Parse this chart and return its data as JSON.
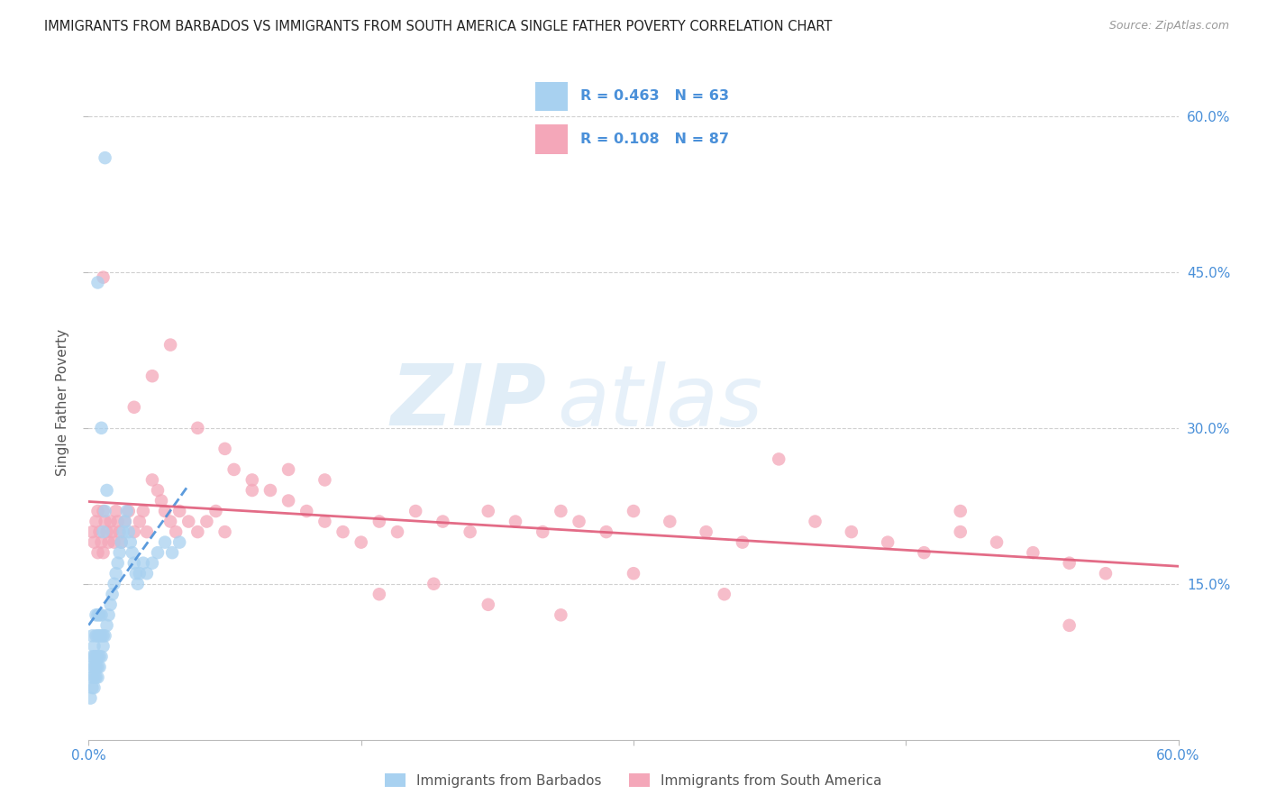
{
  "title": "IMMIGRANTS FROM BARBADOS VS IMMIGRANTS FROM SOUTH AMERICA SINGLE FATHER POVERTY CORRELATION CHART",
  "source": "Source: ZipAtlas.com",
  "ylabel": "Single Father Poverty",
  "ytick_labels": [
    "60.0%",
    "45.0%",
    "30.0%",
    "15.0%"
  ],
  "ytick_values": [
    0.6,
    0.45,
    0.3,
    0.15
  ],
  "xtick_labels": [
    "0.0%",
    "",
    "",
    "",
    "60.0%"
  ],
  "xtick_values": [
    0.0,
    0.15,
    0.3,
    0.45,
    0.6
  ],
  "xlim": [
    0.0,
    0.6
  ],
  "ylim": [
    0.0,
    0.65
  ],
  "legend1_r": "0.463",
  "legend1_n": "63",
  "legend2_r": "0.108",
  "legend2_n": "87",
  "color_blue": "#a8d1f0",
  "color_pink": "#f4a7b9",
  "color_blue_line": "#4a90d9",
  "color_pink_line": "#e05c7a",
  "color_axis_labels": "#4a90d9",
  "grid_color": "#d0d0d0",
  "barbados_x": [
    0.001,
    0.001,
    0.002,
    0.002,
    0.002,
    0.002,
    0.003,
    0.003,
    0.003,
    0.003,
    0.003,
    0.004,
    0.004,
    0.004,
    0.004,
    0.004,
    0.005,
    0.005,
    0.005,
    0.005,
    0.005,
    0.006,
    0.006,
    0.006,
    0.006,
    0.007,
    0.007,
    0.007,
    0.008,
    0.008,
    0.008,
    0.009,
    0.009,
    0.01,
    0.01,
    0.011,
    0.012,
    0.013,
    0.014,
    0.015,
    0.016,
    0.017,
    0.018,
    0.019,
    0.02,
    0.021,
    0.022,
    0.023,
    0.024,
    0.025,
    0.026,
    0.027,
    0.028,
    0.03,
    0.032,
    0.035,
    0.038,
    0.042,
    0.046,
    0.05,
    0.005,
    0.007,
    0.009
  ],
  "barbados_y": [
    0.07,
    0.04,
    0.05,
    0.06,
    0.08,
    0.1,
    0.05,
    0.06,
    0.07,
    0.08,
    0.09,
    0.06,
    0.07,
    0.08,
    0.1,
    0.12,
    0.06,
    0.07,
    0.08,
    0.1,
    0.12,
    0.07,
    0.08,
    0.1,
    0.12,
    0.08,
    0.1,
    0.12,
    0.09,
    0.1,
    0.2,
    0.1,
    0.22,
    0.11,
    0.24,
    0.12,
    0.13,
    0.14,
    0.15,
    0.16,
    0.17,
    0.18,
    0.19,
    0.2,
    0.21,
    0.22,
    0.2,
    0.19,
    0.18,
    0.17,
    0.16,
    0.15,
    0.16,
    0.17,
    0.16,
    0.17,
    0.18,
    0.19,
    0.18,
    0.19,
    0.44,
    0.3,
    0.56
  ],
  "south_america_x": [
    0.002,
    0.003,
    0.004,
    0.005,
    0.005,
    0.006,
    0.007,
    0.008,
    0.008,
    0.009,
    0.01,
    0.011,
    0.012,
    0.013,
    0.014,
    0.015,
    0.016,
    0.017,
    0.018,
    0.02,
    0.022,
    0.025,
    0.028,
    0.03,
    0.032,
    0.035,
    0.038,
    0.04,
    0.042,
    0.045,
    0.048,
    0.05,
    0.055,
    0.06,
    0.065,
    0.07,
    0.075,
    0.08,
    0.09,
    0.1,
    0.11,
    0.12,
    0.13,
    0.14,
    0.15,
    0.16,
    0.17,
    0.18,
    0.195,
    0.21,
    0.22,
    0.235,
    0.25,
    0.26,
    0.27,
    0.285,
    0.3,
    0.32,
    0.34,
    0.36,
    0.38,
    0.4,
    0.42,
    0.44,
    0.46,
    0.48,
    0.5,
    0.52,
    0.54,
    0.56,
    0.025,
    0.035,
    0.045,
    0.06,
    0.075,
    0.09,
    0.11,
    0.13,
    0.16,
    0.19,
    0.22,
    0.26,
    0.3,
    0.35,
    0.48,
    0.54,
    0.008
  ],
  "south_america_y": [
    0.2,
    0.19,
    0.21,
    0.18,
    0.22,
    0.2,
    0.19,
    0.18,
    0.22,
    0.21,
    0.2,
    0.19,
    0.21,
    0.2,
    0.19,
    0.22,
    0.21,
    0.2,
    0.19,
    0.21,
    0.22,
    0.2,
    0.21,
    0.22,
    0.2,
    0.25,
    0.24,
    0.23,
    0.22,
    0.21,
    0.2,
    0.22,
    0.21,
    0.2,
    0.21,
    0.22,
    0.2,
    0.26,
    0.25,
    0.24,
    0.23,
    0.22,
    0.21,
    0.2,
    0.19,
    0.21,
    0.2,
    0.22,
    0.21,
    0.2,
    0.22,
    0.21,
    0.2,
    0.22,
    0.21,
    0.2,
    0.22,
    0.21,
    0.2,
    0.19,
    0.27,
    0.21,
    0.2,
    0.19,
    0.18,
    0.2,
    0.19,
    0.18,
    0.17,
    0.16,
    0.32,
    0.35,
    0.38,
    0.3,
    0.28,
    0.24,
    0.26,
    0.25,
    0.14,
    0.15,
    0.13,
    0.12,
    0.16,
    0.14,
    0.22,
    0.11,
    0.445
  ]
}
